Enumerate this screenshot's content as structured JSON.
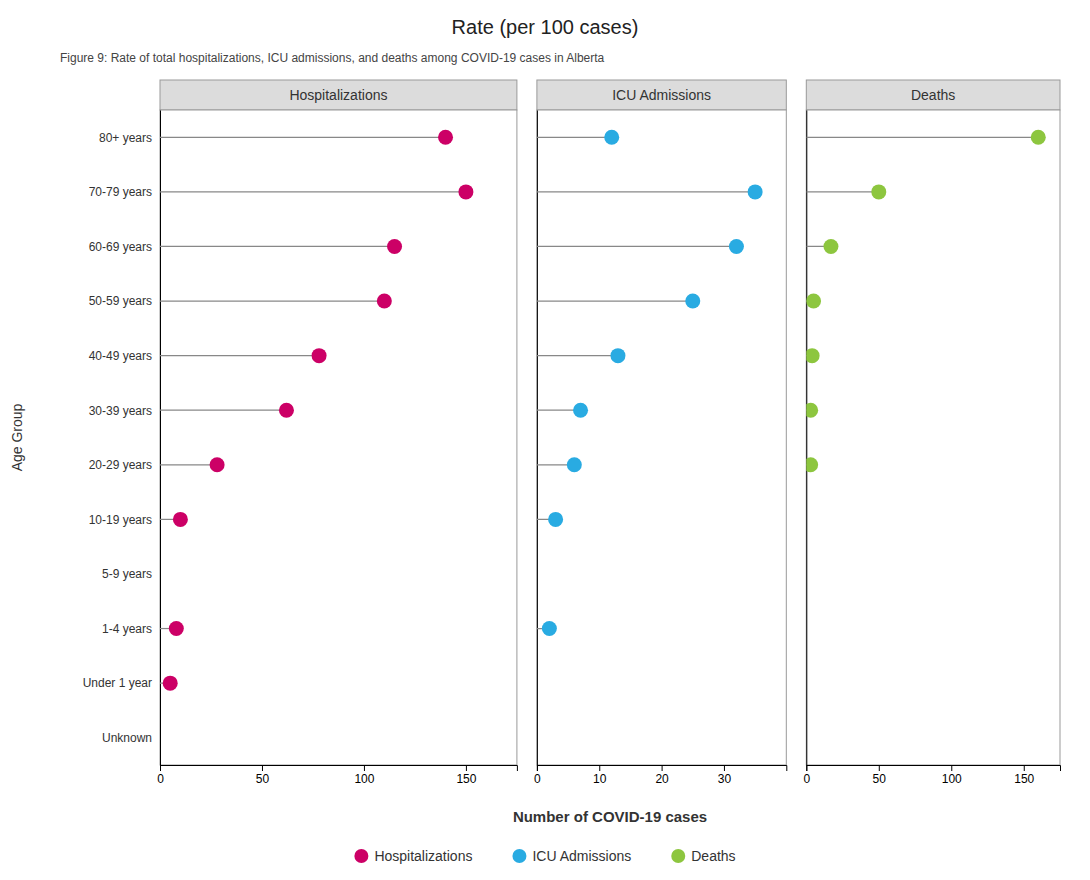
{
  "chart_data": {
    "type": "lollipop",
    "title": "Rate (per 100 cases)",
    "subtitle": "Figure 9: Rate of total hospitalizations, ICU admissions, and deaths among COVID-19 cases in Alberta",
    "xlabel": "Number of COVID-19 cases",
    "ylabel": "Age Group",
    "orientation": "horizontal",
    "grid": false,
    "legend": "bottom",
    "categories": [
      "80+ years",
      "70-79 years",
      "60-69 years",
      "50-59 years",
      "40-49 years",
      "30-39 years",
      "20-29 years",
      "10-19 years",
      "5-9 years",
      "1-4 years",
      "Under 1 year",
      "Unknown"
    ],
    "series": [
      {
        "name": "Hospitalizations",
        "color": "#CC0066",
        "values": [
          140,
          150,
          115,
          110,
          78,
          62,
          28,
          10,
          null,
          8,
          5,
          null
        ],
        "xlim": [
          0,
          175
        ],
        "xticks": [
          0,
          50,
          100,
          150
        ]
      },
      {
        "name": "ICU Admissions",
        "color": "#29ABE2",
        "values": [
          12,
          35,
          32,
          25,
          13,
          7,
          6,
          3,
          null,
          2,
          null,
          null
        ],
        "xlim": [
          0,
          40
        ],
        "xticks": [
          0,
          10,
          20,
          30
        ]
      },
      {
        "name": "Deaths",
        "color": "#8DC63F",
        "values": [
          160,
          50,
          17,
          5,
          4,
          3,
          3,
          null,
          null,
          null,
          null,
          null
        ],
        "xlim": [
          0,
          175
        ],
        "xticks": [
          0,
          50,
          100,
          150
        ]
      }
    ]
  }
}
